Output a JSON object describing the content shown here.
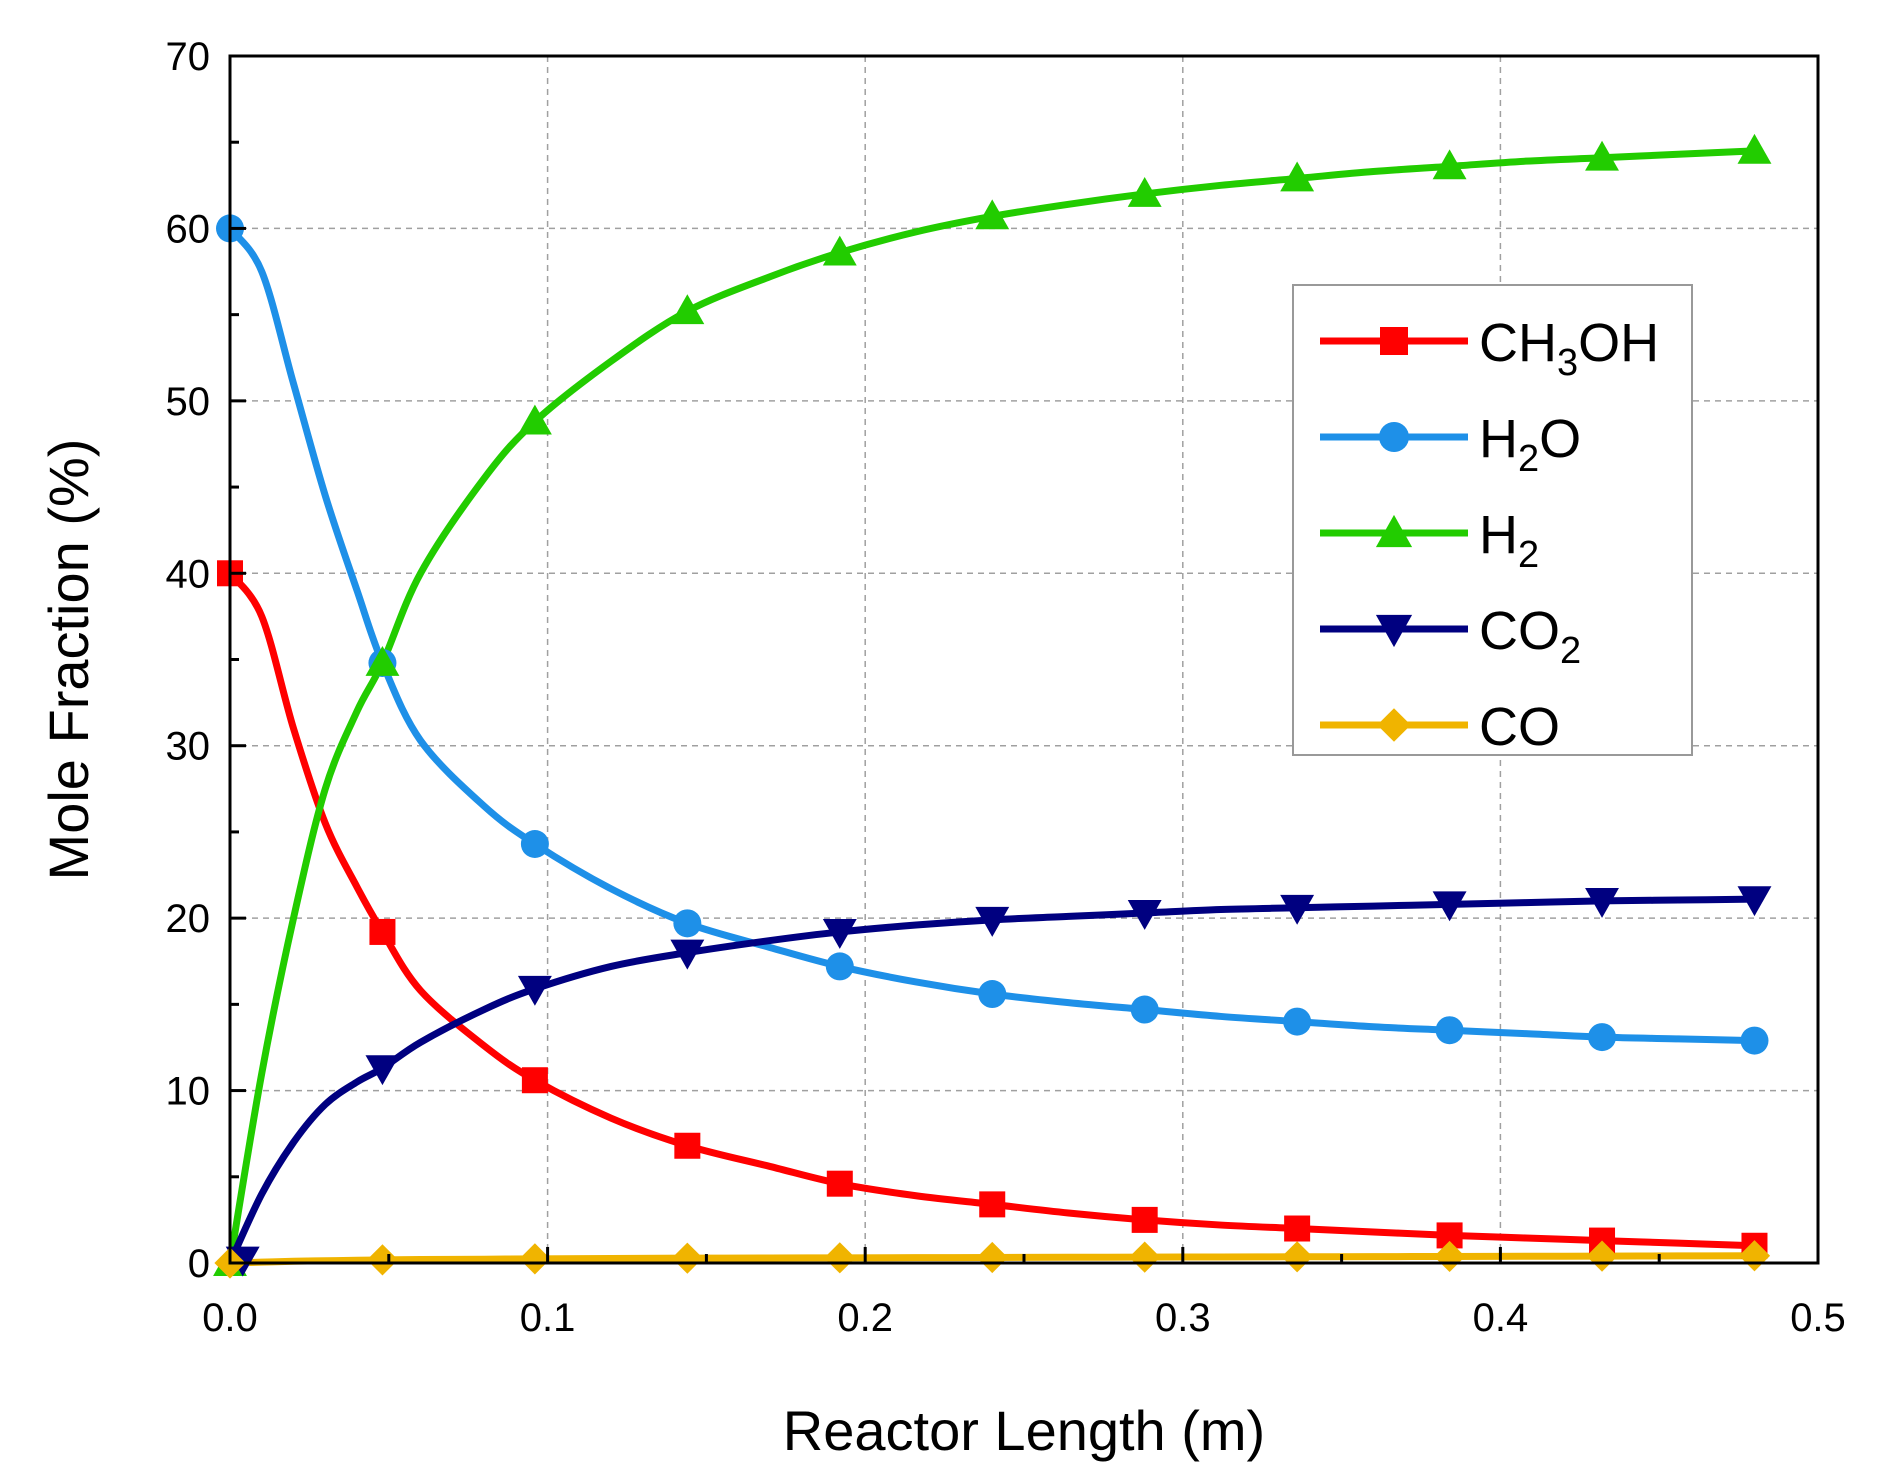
{
  "chart_data": {
    "type": "line",
    "title": "",
    "xlabel": "Reactor Length (m)",
    "ylabel": "Mole Fraction (%)",
    "xlim": [
      0,
      0.5
    ],
    "ylim": [
      0,
      70
    ],
    "grid": true,
    "legend_position": "top-right",
    "x_ticks": [
      0.0,
      0.1,
      0.2,
      0.3,
      0.4,
      0.5
    ],
    "x_tick_labels": [
      "0.0",
      "0.1",
      "0.2",
      "0.3",
      "0.4",
      "0.5"
    ],
    "y_ticks": [
      0,
      10,
      20,
      30,
      40,
      50,
      60,
      70
    ],
    "y_tick_labels": [
      "0",
      "10",
      "20",
      "30",
      "40",
      "50",
      "60",
      "70"
    ],
    "x": [
      0.0,
      0.01,
      0.02,
      0.03,
      0.04,
      0.048,
      0.06,
      0.08,
      0.096,
      0.12,
      0.144,
      0.17,
      0.192,
      0.216,
      0.24,
      0.264,
      0.288,
      0.312,
      0.336,
      0.36,
      0.384,
      0.408,
      0.432,
      0.456,
      0.48
    ],
    "series": [
      {
        "name": "CH3OH",
        "legend_main": "CH",
        "legend_sub": "3",
        "legend_tail": "OH",
        "color": "#ff0000",
        "marker": "square",
        "values": [
          40.0,
          37.5,
          31.0,
          25.5,
          21.8,
          19.2,
          15.8,
          12.6,
          10.6,
          8.4,
          6.8,
          5.6,
          4.6,
          3.9,
          3.4,
          2.9,
          2.5,
          2.2,
          2.0,
          1.8,
          1.6,
          1.45,
          1.3,
          1.15,
          1.0
        ],
        "marker_x": [
          0.0,
          0.048,
          0.096,
          0.144,
          0.192,
          0.24,
          0.288,
          0.336,
          0.384,
          0.432,
          0.48
        ],
        "marker_values": [
          40.0,
          19.2,
          10.6,
          6.8,
          4.6,
          3.4,
          2.5,
          2.0,
          1.6,
          1.3,
          1.0
        ]
      },
      {
        "name": "H2O",
        "legend_main": "H",
        "legend_sub": "2",
        "legend_tail": "O",
        "color": "#1e90e8",
        "marker": "circle",
        "values": [
          60.0,
          57.5,
          51.0,
          44.5,
          39.0,
          34.8,
          30.3,
          26.5,
          24.3,
          21.7,
          19.7,
          18.3,
          17.2,
          16.3,
          15.6,
          15.1,
          14.7,
          14.3,
          14.0,
          13.7,
          13.5,
          13.3,
          13.1,
          13.0,
          12.9
        ],
        "marker_x": [
          0.0,
          0.048,
          0.096,
          0.144,
          0.192,
          0.24,
          0.288,
          0.336,
          0.384,
          0.432,
          0.48
        ],
        "marker_values": [
          60.0,
          34.8,
          24.3,
          19.7,
          17.2,
          15.6,
          14.7,
          14.0,
          13.5,
          13.1,
          12.9
        ]
      },
      {
        "name": "H2",
        "legend_main": "H",
        "legend_sub": "2",
        "legend_tail": "",
        "color": "#22cc00",
        "marker": "triangle-up",
        "values": [
          0.0,
          11.0,
          20.0,
          27.5,
          32.0,
          34.8,
          40.0,
          45.5,
          48.8,
          52.3,
          55.2,
          57.2,
          58.6,
          59.8,
          60.7,
          61.4,
          62.0,
          62.5,
          62.9,
          63.3,
          63.6,
          63.9,
          64.1,
          64.3,
          64.5
        ],
        "marker_x": [
          0.0,
          0.048,
          0.096,
          0.144,
          0.192,
          0.24,
          0.288,
          0.336,
          0.384,
          0.432,
          0.48
        ],
        "marker_values": [
          0.0,
          34.8,
          48.8,
          55.2,
          58.6,
          60.7,
          62.0,
          62.9,
          63.6,
          64.1,
          64.5
        ]
      },
      {
        "name": "CO2",
        "legend_main": "CO",
        "legend_sub": "2",
        "legend_tail": "",
        "color": "#000080",
        "marker": "triangle-down",
        "values": [
          0.0,
          4.0,
          7.0,
          9.2,
          10.5,
          11.3,
          12.8,
          14.7,
          15.9,
          17.2,
          18.0,
          18.7,
          19.2,
          19.6,
          19.9,
          20.1,
          20.3,
          20.5,
          20.6,
          20.7,
          20.8,
          20.9,
          21.0,
          21.05,
          21.1
        ],
        "marker_x": [
          0.004,
          0.048,
          0.096,
          0.144,
          0.192,
          0.24,
          0.288,
          0.336,
          0.384,
          0.432,
          0.48
        ],
        "marker_values": [
          0.2,
          11.3,
          15.9,
          18.0,
          19.2,
          19.9,
          20.3,
          20.6,
          20.8,
          21.0,
          21.1
        ]
      },
      {
        "name": "CO",
        "legend_main": "CO",
        "legend_sub": "",
        "legend_tail": "",
        "color": "#f0b400",
        "marker": "diamond",
        "values": [
          0.0,
          0.05,
          0.1,
          0.13,
          0.16,
          0.18,
          0.2,
          0.22,
          0.24,
          0.26,
          0.28,
          0.29,
          0.3,
          0.31,
          0.32,
          0.33,
          0.34,
          0.35,
          0.36,
          0.37,
          0.38,
          0.39,
          0.4,
          0.41,
          0.42
        ],
        "marker_x": [
          0.0,
          0.048,
          0.096,
          0.144,
          0.192,
          0.24,
          0.288,
          0.336,
          0.384,
          0.432,
          0.48
        ],
        "marker_values": [
          0.0,
          0.18,
          0.24,
          0.28,
          0.3,
          0.32,
          0.34,
          0.36,
          0.38,
          0.4,
          0.42
        ]
      }
    ]
  }
}
